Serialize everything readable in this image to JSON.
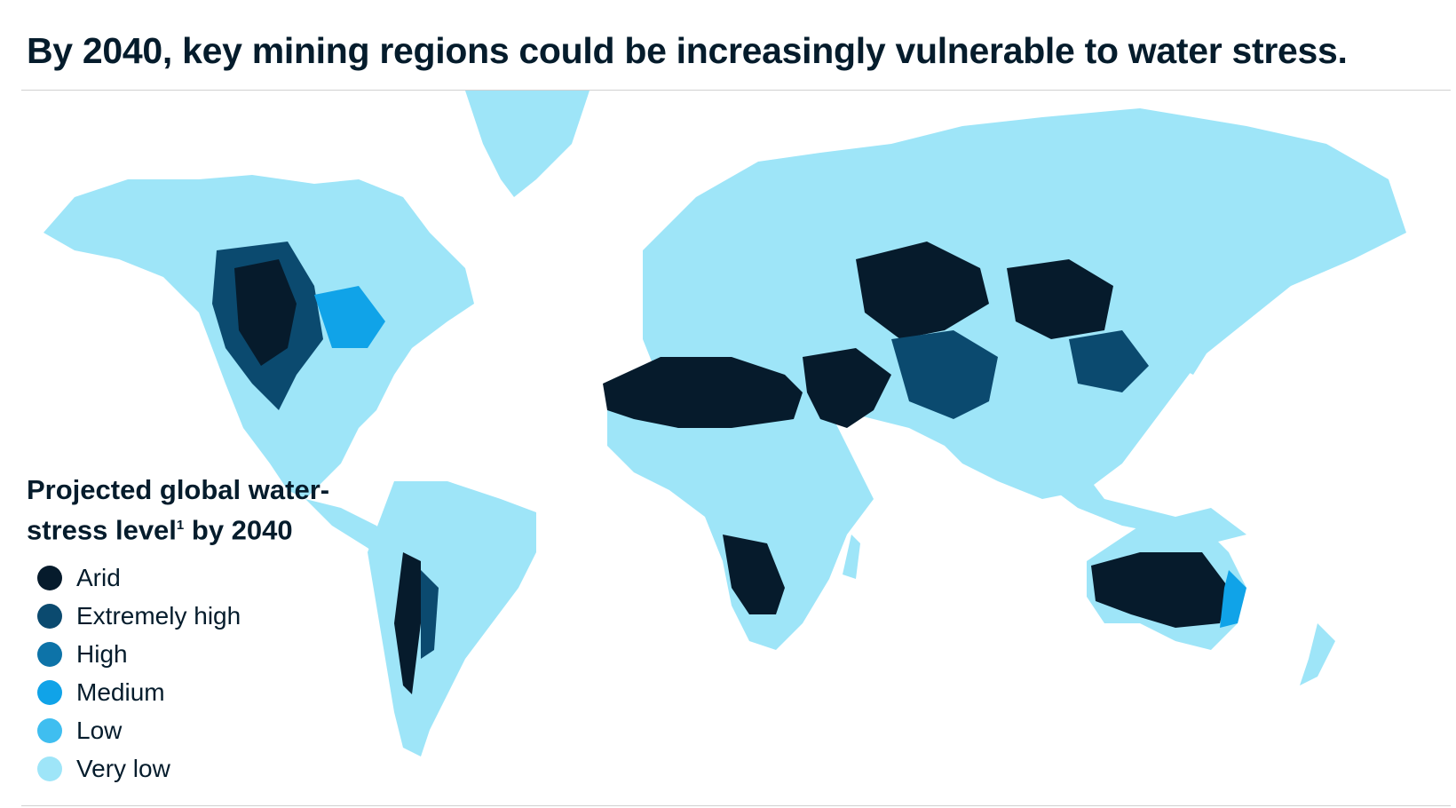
{
  "title": "By 2040, key mining regions could be increasingly vulnerable to water stress.",
  "legend": {
    "title_part1": "Projected global water-",
    "title_part2": "stress level",
    "footnote_marker": "1",
    "title_part3": " by 2040",
    "items": [
      {
        "label": "Arid",
        "color": "#061b2c"
      },
      {
        "label": "Extremely high",
        "color": "#0b4a6f"
      },
      {
        "label": "High",
        "color": "#0d73a8"
      },
      {
        "label": "Medium",
        "color": "#10a3e8"
      },
      {
        "label": "Low",
        "color": "#3fbef0"
      },
      {
        "label": "Very low",
        "color": "#9ee5f8"
      }
    ]
  }
}
